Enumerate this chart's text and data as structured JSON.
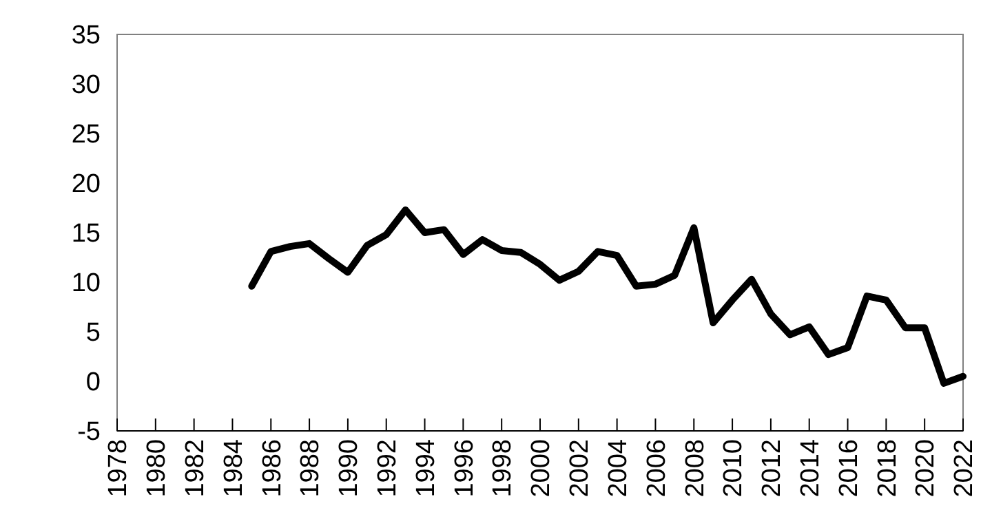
{
  "chart_data": {
    "type": "line",
    "x": [
      1985,
      1986,
      1987,
      1988,
      1989,
      1990,
      1991,
      1992,
      1993,
      1994,
      1995,
      1996,
      1997,
      1998,
      1999,
      2000,
      2001,
      2002,
      2003,
      2004,
      2005,
      2006,
      2007,
      2008,
      2009,
      2010,
      2011,
      2012,
      2013,
      2014,
      2015,
      2016,
      2017,
      2018,
      2019,
      2020,
      2021,
      2022
    ],
    "series": [
      {
        "color": "#000000",
        "values": [
          9.6,
          13.1,
          13.6,
          13.9,
          12.4,
          11.0,
          13.7,
          14.8,
          17.3,
          15.0,
          15.3,
          12.8,
          14.3,
          13.2,
          13.0,
          11.8,
          10.2,
          11.1,
          13.1,
          12.7,
          9.6,
          9.8,
          10.7,
          15.5,
          5.9,
          8.2,
          10.3,
          6.8,
          4.7,
          5.5,
          2.7,
          3.4,
          8.6,
          8.2,
          5.4,
          5.4,
          -0.2,
          0.5
        ]
      }
    ],
    "xlim": [
      1978,
      2022
    ],
    "xticks": [
      1978,
      1980,
      1982,
      1984,
      1986,
      1988,
      1990,
      1992,
      1994,
      1996,
      1998,
      2000,
      2002,
      2004,
      2006,
      2008,
      2010,
      2012,
      2014,
      2016,
      2018,
      2020,
      2022
    ],
    "ylim": [
      -5,
      35
    ],
    "yticks": [
      -5,
      0,
      5,
      10,
      15,
      20,
      25,
      30,
      35
    ],
    "grid": false,
    "marker": "none",
    "line_style": "solid"
  }
}
